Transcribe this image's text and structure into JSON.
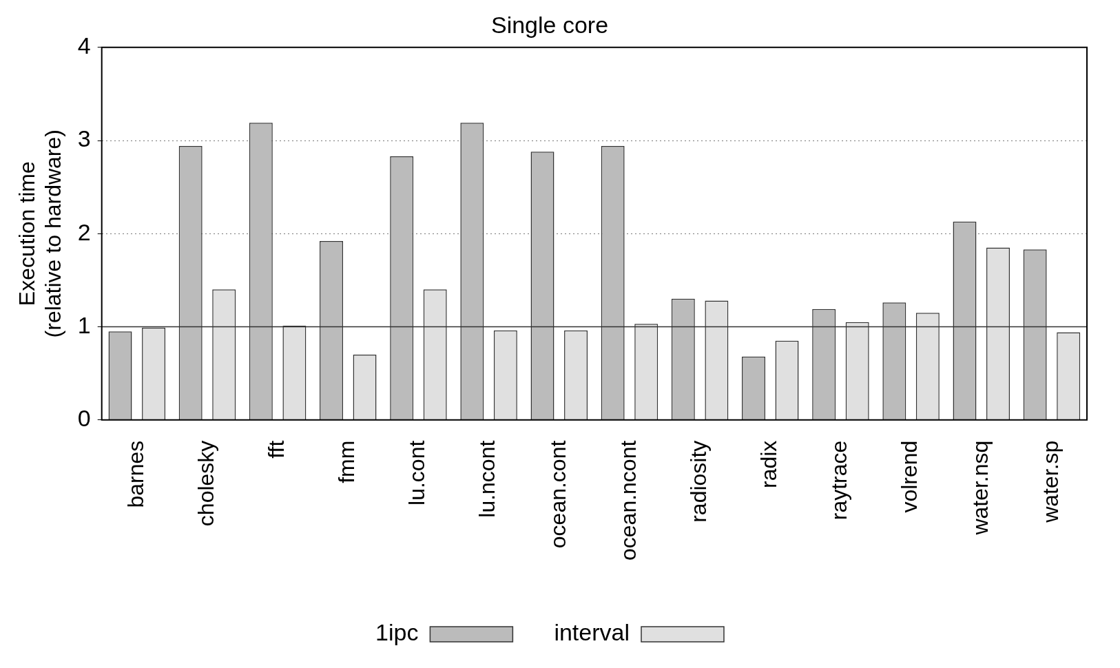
{
  "chart_data": {
    "type": "bar",
    "title": "Single core",
    "ylabel": "Execution time\n(relative to hardware)",
    "categories": [
      "barnes",
      "cholesky",
      "fft",
      "fmm",
      "lu.cont",
      "lu.ncont",
      "ocean.cont",
      "ocean.ncont",
      "radiosity",
      "radix",
      "raytrace",
      "volrend",
      "water.nsq",
      "water.sp"
    ],
    "series": [
      {
        "name": "1ipc",
        "color": "#bbbbbb",
        "values": [
          0.95,
          2.94,
          3.19,
          1.92,
          2.83,
          3.19,
          2.88,
          2.94,
          1.3,
          0.68,
          1.19,
          1.26,
          2.13,
          1.83
        ]
      },
      {
        "name": "interval",
        "color": "#e0e0e0",
        "values": [
          0.99,
          1.4,
          1.01,
          0.7,
          1.4,
          0.96,
          0.96,
          1.03,
          1.28,
          0.85,
          1.05,
          1.15,
          1.85,
          0.94
        ]
      }
    ],
    "ylim": [
      0,
      4
    ],
    "yticks": [
      0,
      1,
      2,
      3,
      4
    ],
    "grid": "y",
    "legend": "bottom",
    "ref_lines": [
      {
        "axis": "y",
        "value": 1,
        "color": "#333333",
        "line_style": "solid"
      }
    ]
  }
}
